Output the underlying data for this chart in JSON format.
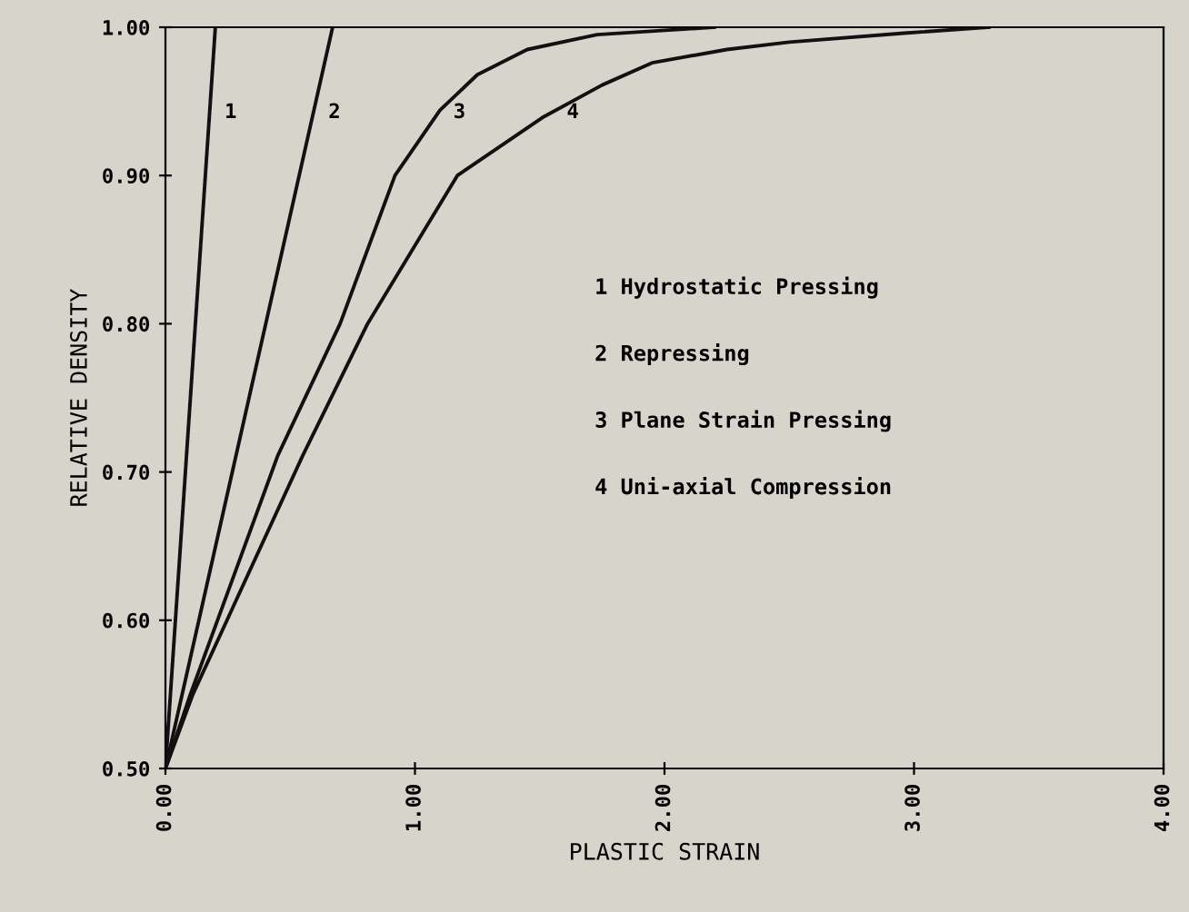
{
  "chart_data": {
    "type": "line",
    "xlabel": "PLASTIC STRAIN",
    "ylabel": "RELATIVE DENSITY",
    "xlim": [
      0,
      4
    ],
    "ylim": [
      0.5,
      1.0
    ],
    "xticks": [
      {
        "value": 0,
        "label": "0.00"
      },
      {
        "value": 1,
        "label": "1.00"
      },
      {
        "value": 2,
        "label": "2.00"
      },
      {
        "value": 3,
        "label": "3.00"
      },
      {
        "value": 4,
        "label": "4.00"
      }
    ],
    "yticks": [
      {
        "value": 0.5,
        "label": "0.50"
      },
      {
        "value": 0.6,
        "label": "0.60"
      },
      {
        "value": 0.7,
        "label": "0.70"
      },
      {
        "value": 0.8,
        "label": "0.80"
      },
      {
        "value": 0.9,
        "label": "0.90"
      },
      {
        "value": 1.0,
        "label": "1.00"
      }
    ],
    "grid": false,
    "legend": false,
    "marker": "none",
    "line_style": "solid",
    "series": [
      {
        "name": "1",
        "color": "#111111",
        "x": [
          0,
          0.2
        ],
        "values": [
          0.5,
          1.0
        ]
      },
      {
        "name": "2",
        "color": "#111111",
        "x": [
          0,
          0.67
        ],
        "values": [
          0.5,
          1.0
        ]
      },
      {
        "name": "3",
        "color": "#111111",
        "x": [
          0,
          0.1,
          0.45,
          0.7,
          0.92,
          1.1,
          1.25,
          1.45,
          1.73,
          2.2
        ],
        "values": [
          0.5,
          0.55,
          0.711,
          0.8,
          0.9,
          0.944,
          0.968,
          0.985,
          0.995,
          1.0
        ]
      },
      {
        "name": "4",
        "color": "#111111",
        "x": [
          0,
          0.11,
          0.55,
          0.81,
          1.17,
          1.51,
          1.75,
          1.95,
          2.25,
          2.5,
          2.96,
          3.3
        ],
        "values": [
          0.5,
          0.55,
          0.711,
          0.8,
          0.9,
          0.939,
          0.961,
          0.976,
          0.985,
          0.99,
          0.996,
          1.0
        ]
      }
    ],
    "annotations": [
      "1 Hydrostatic Pressing",
      "2 Repressing",
      "3 Plane Strain Pressing",
      "4 Uni-axial Compression"
    ]
  }
}
